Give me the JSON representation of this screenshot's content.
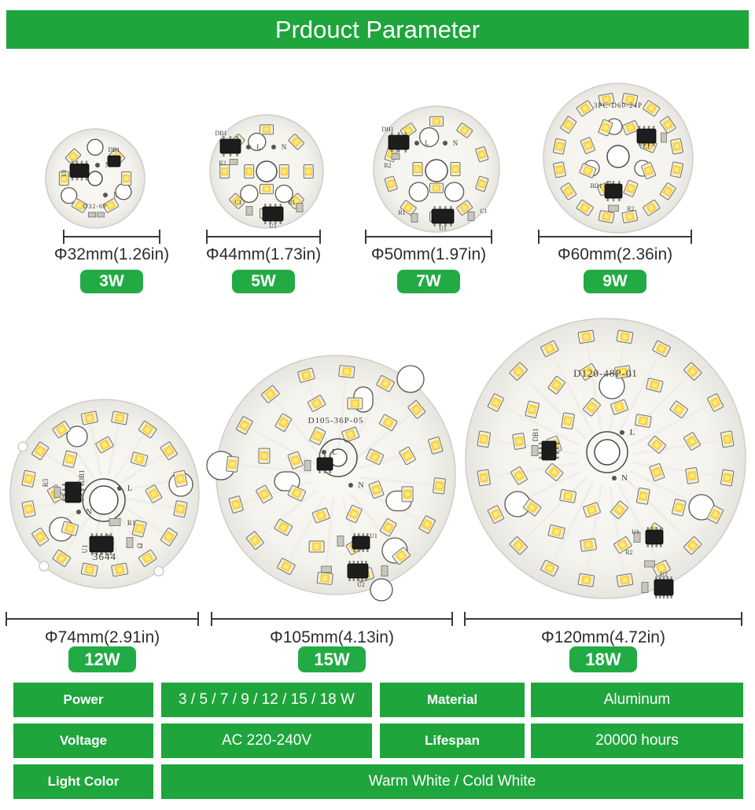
{
  "title": "Prdouct Parameter",
  "colors": {
    "green": "#1ea53c",
    "badge_green": "#22ab44",
    "led_gold": "#ffd22f",
    "pcb_white": "#f5f4ef",
    "silk_text": "#3f3d36"
  },
  "products": [
    {
      "power_label": "3W",
      "dim_label": "Φ32mm(1.26in)",
      "marking": "D32-6P",
      "led_count": 6,
      "silk": [
        "U1",
        "DB1",
        "N",
        "L"
      ]
    },
    {
      "power_label": "5W",
      "dim_label": "Φ44mm(1.73in)",
      "marking": "",
      "led_count": 11,
      "silk": [
        "DB1",
        "R2",
        "U1",
        "L",
        "N",
        "R1",
        "C1"
      ]
    },
    {
      "power_label": "7W",
      "dim_label": "Φ50mm(1.97in)",
      "marking": "",
      "led_count": 13,
      "silk": [
        "DH1",
        "R2",
        "U1",
        "L",
        "N",
        "R1",
        "C1"
      ]
    },
    {
      "power_label": "9W",
      "dim_label": "Φ60mm(2.36in)",
      "marking": "3PC-D60-24P",
      "led_count": 24,
      "silk": [
        "C1",
        "BD1",
        "R2"
      ]
    },
    {
      "power_label": "12W",
      "dim_label": "Φ74mm(2.91in)",
      "marking": "3644",
      "led_count": 24,
      "silk": [
        "DB1",
        "R3",
        "R1",
        "U1",
        "Ω",
        "L",
        "N"
      ]
    },
    {
      "power_label": "15W",
      "dim_label": "Φ105mm(4.13in)",
      "marking": "D105-36P-05",
      "led_count": 36,
      "silk": [
        "L",
        "N",
        "U1",
        "U2"
      ]
    },
    {
      "power_label": "18W",
      "dim_label": "Φ120mm(4.72in)",
      "marking": "D120-48P-01",
      "led_count": 48,
      "silk": [
        "L",
        "N",
        "DB1",
        "U1",
        "U2",
        "R2"
      ]
    }
  ],
  "table": {
    "rows": [
      {
        "cells": [
          {
            "label": "Power",
            "value": "3 / 5 / 7 / 9 / 12 / 15 / 18 W"
          },
          {
            "label": "Material",
            "value": "Aluminum"
          }
        ]
      },
      {
        "cells": [
          {
            "label": "Voltage",
            "value": "AC 220-240V"
          },
          {
            "label": "Lifespan",
            "value": "20000 hours"
          }
        ]
      },
      {
        "cells": [
          {
            "label": "Light Color",
            "value": "Warm White / Cold White"
          }
        ]
      }
    ]
  }
}
